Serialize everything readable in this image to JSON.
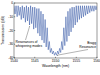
{
  "chart_data": {
    "type": "line",
    "x_label": "Wavelength (nm)",
    "y_label": "Transmission (dB)",
    "x": [
      1540,
      1540.25,
      1540.5,
      1540.75,
      1541,
      1541.25,
      1541.5,
      1541.75,
      1542,
      1542.25,
      1542.5,
      1542.75,
      1543,
      1543.25,
      1543.5,
      1543.75,
      1544,
      1544.25,
      1544.5,
      1544.75,
      1545,
      1545.25,
      1545.5,
      1545.75,
      1546,
      1546.25,
      1546.5,
      1546.75,
      1547,
      1547.25,
      1547.5,
      1547.75,
      1548,
      1548.25,
      1548.5,
      1548.75,
      1549,
      1549.25,
      1549.5,
      1549.75,
      1550,
      1550.25,
      1550.5,
      1550.75,
      1551,
      1551.25,
      1551.5,
      1551.75,
      1552,
      1552.25,
      1552.5,
      1552.75,
      1553,
      1553.25,
      1553.5,
      1553.75,
      1554,
      1554.25,
      1554.5,
      1554.75,
      1555,
      1555.25,
      1555.5,
      1555.75,
      1556,
      1556.25,
      1556.5,
      1556.75,
      1557,
      1557.25,
      1557.5,
      1557.75,
      1558,
      1558.25,
      1558.5,
      1558.75,
      1559,
      1559.25,
      1559.5,
      1559.75,
      1560
    ],
    "series": [
      {
        "name": "Transmission",
        "color": "#2a4fa0",
        "values": [
          -2,
          -8,
          -2,
          -10,
          -2,
          -9,
          -3,
          -12,
          -2,
          -11,
          -3,
          -14,
          -2,
          -13,
          -3,
          -16,
          -2,
          -15,
          -3,
          -19,
          -3,
          -18,
          -4,
          -22,
          -4,
          -24,
          -6,
          -27,
          -8,
          -29,
          -12,
          -32,
          -18,
          -34,
          -28,
          -36,
          -33,
          -37,
          -35,
          -38,
          -36,
          -38,
          -35,
          -37,
          -33,
          -36,
          -28,
          -34,
          -18,
          -31,
          -10,
          -28,
          -6,
          -24,
          -4,
          -21,
          -3,
          -18,
          -3,
          -16,
          -2,
          -14,
          -2,
          -12,
          -2,
          -11,
          -2,
          -10,
          -2,
          -9,
          -2,
          -8,
          -2,
          -7,
          -2,
          -6,
          -2,
          -6,
          -2,
          -5,
          -2
        ]
      }
    ],
    "xlim": [
      1540,
      1560
    ],
    "xticks": [
      1540,
      1545,
      1550,
      1555,
      1560
    ],
    "ylim": [
      -40,
      0
    ],
    "yticks": [
      -40,
      -30,
      -20,
      -10,
      0
    ],
    "annotations": [
      {
        "text": "Resonances of whispering modes",
        "x": 1543.75,
        "y": -16
      },
      {
        "text": "Bragg Resonance",
        "x": 1550,
        "y": -38
      }
    ],
    "grid": false
  }
}
